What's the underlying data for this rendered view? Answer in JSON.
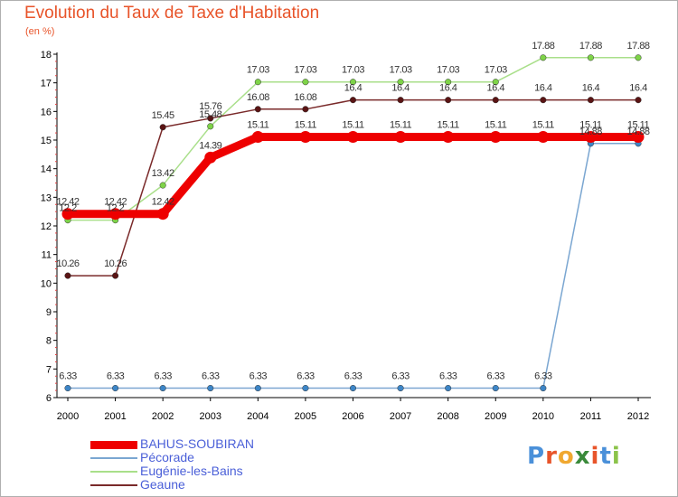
{
  "title": "Evolution du Taux de Taxe d'Habitation",
  "subtitle": "(en %)",
  "logo": {
    "text": "Proxiti",
    "letters": [
      {
        "ch": "P",
        "color": "#4a90d9"
      },
      {
        "ch": "r",
        "color": "#e8542a"
      },
      {
        "ch": "o",
        "color": "#f0a830"
      },
      {
        "ch": "x",
        "color": "#3a8a3a"
      },
      {
        "ch": "i",
        "color": "#e8542a"
      },
      {
        "ch": "t",
        "color": "#4a90d9"
      },
      {
        "ch": "i",
        "color": "#8bc34a"
      }
    ]
  },
  "chart_data": {
    "type": "line",
    "title": "Evolution du Taux de Taxe d'Habitation",
    "ylabel": "(en %)",
    "xlabel": "",
    "x": [
      "2000",
      "2001",
      "2002",
      "2003",
      "2004",
      "2005",
      "2006",
      "2007",
      "2008",
      "2009",
      "2010",
      "2011",
      "2012"
    ],
    "ylim": [
      6,
      18
    ],
    "yticks": [
      "6",
      "7",
      "8",
      "9",
      "10",
      "11",
      "12",
      "13",
      "14",
      "15",
      "16",
      "17",
      "18"
    ],
    "grid": false,
    "legend_position": "bottom-left",
    "series": [
      {
        "name": "BAHUS-SOUBIRAN",
        "color": "#ee0000",
        "marker": "#ee0000",
        "values": [
          12.42,
          12.42,
          12.42,
          14.39,
          15.11,
          15.11,
          15.11,
          15.11,
          15.11,
          15.11,
          15.11,
          15.11,
          15.11
        ],
        "labels": [
          "12.42",
          "12.42",
          "12.42",
          "14.39",
          "15.11",
          "15.11",
          "15.11",
          "15.11",
          "15.11",
          "15.11",
          "15.11",
          "15.11",
          "15.11"
        ]
      },
      {
        "name": "Pécorade",
        "color": "#7aa6d1",
        "marker": "#3d85c6",
        "values": [
          6.33,
          6.33,
          6.33,
          6.33,
          6.33,
          6.33,
          6.33,
          6.33,
          6.33,
          6.33,
          6.33,
          14.88,
          14.88
        ],
        "labels": [
          "6.33",
          "6.33",
          "6.33",
          "6.33",
          "6.33",
          "6.33",
          "6.33",
          "6.33",
          "6.33",
          "6.33",
          "6.33",
          "14.88",
          "14.88"
        ]
      },
      {
        "name": "Eugénie-les-Bains",
        "color": "#a9df8a",
        "marker": "#7ed348",
        "values": [
          12.2,
          12.2,
          13.42,
          15.48,
          17.03,
          17.03,
          17.03,
          17.03,
          17.03,
          17.03,
          17.88,
          17.88,
          17.88
        ],
        "labels": [
          "12.2",
          "12.2",
          "13.42",
          "15.48",
          "17.03",
          "17.03",
          "17.03",
          "17.03",
          "17.03",
          "17.03",
          "17.88",
          "17.88",
          "17.88"
        ]
      },
      {
        "name": "Geaune",
        "color": "#7a2a2a",
        "marker": "#5a1414",
        "values": [
          10.26,
          10.26,
          15.45,
          15.76,
          16.08,
          16.08,
          16.4,
          16.4,
          16.4,
          16.4,
          16.4,
          16.4,
          16.4
        ],
        "labels": [
          "10.26",
          "10.26",
          "15.45",
          "15.76",
          "16.08",
          "16.08",
          "16.4",
          "16.4",
          "16.4",
          "16.4",
          "16.4",
          "16.4",
          "16.4"
        ]
      }
    ]
  }
}
